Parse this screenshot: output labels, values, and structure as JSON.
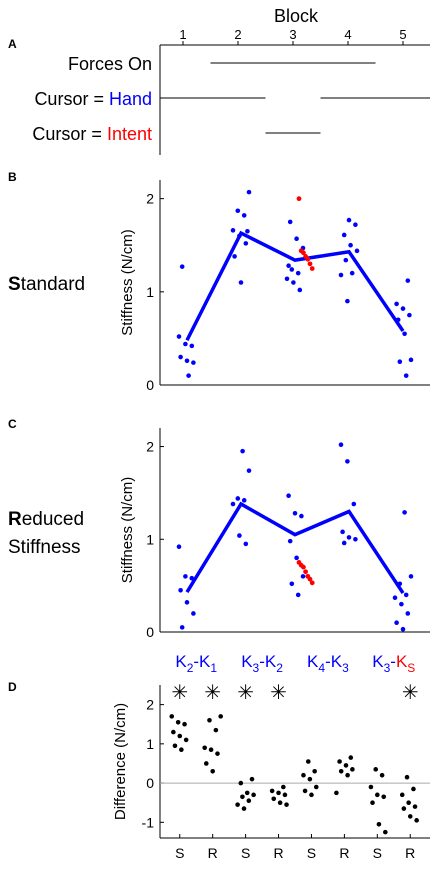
{
  "colors": {
    "blue": "#0000ff",
    "red": "#ff0000",
    "black": "#000000",
    "gray": "#aaaaaa"
  },
  "panel_a": {
    "letter": "A",
    "axis_title": "Block",
    "blocks": [
      "1",
      "2",
      "3",
      "4",
      "5"
    ],
    "rows": [
      {
        "prefix": "Forces On",
        "suffix": "",
        "suffix_color": "black",
        "segments": [
          [
            1.5,
            4.5
          ]
        ]
      },
      {
        "prefix": "Cursor = ",
        "suffix": "Hand",
        "suffix_color": "blue",
        "segments": [
          [
            0.5,
            2.5
          ],
          [
            3.5,
            5.5
          ]
        ]
      },
      {
        "prefix": "Cursor = ",
        "suffix": "Intent",
        "suffix_color": "red",
        "segments": [
          [
            2.5,
            3.5
          ]
        ]
      }
    ]
  },
  "chart_data": [
    {
      "type": "scatter",
      "panel": "B",
      "row_label_bold": "S",
      "row_label_rest": [
        "tandard"
      ],
      "ylabel": "Stiffness (N/cm)",
      "ylim": [
        0,
        2.2
      ],
      "yticks": [
        "0",
        "1",
        "2"
      ],
      "xlim": [
        0.5,
        5.5
      ],
      "mean_line": {
        "x": [
          1,
          2,
          3,
          4,
          5
        ],
        "y": [
          0.48,
          1.63,
          1.34,
          1.43,
          0.58
        ]
      },
      "points": [
        [
          1,
          0.52
        ],
        [
          1,
          0.44
        ],
        [
          1,
          0.42
        ],
        [
          1,
          0.3
        ],
        [
          1,
          0.26
        ],
        [
          1,
          0.24
        ],
        [
          1,
          1.27
        ],
        [
          1,
          0.1
        ],
        [
          2,
          2.07
        ],
        [
          2,
          1.87
        ],
        [
          2,
          1.82
        ],
        [
          2,
          1.66
        ],
        [
          2,
          1.6
        ],
        [
          2,
          1.52
        ],
        [
          2,
          1.38
        ],
        [
          2,
          1.1
        ],
        [
          2,
          1.65
        ],
        [
          3,
          1.75
        ],
        [
          3,
          1.57
        ],
        [
          3,
          1.47
        ],
        [
          3,
          1.24
        ],
        [
          3,
          1.2
        ],
        [
          3,
          1.14
        ],
        [
          3,
          1.1
        ],
        [
          3,
          1.02
        ],
        [
          3,
          1.28
        ],
        [
          4,
          1.77
        ],
        [
          4,
          1.72
        ],
        [
          4,
          1.61
        ],
        [
          4,
          1.5
        ],
        [
          4,
          1.44
        ],
        [
          4,
          1.34
        ],
        [
          4,
          1.2
        ],
        [
          4,
          1.18
        ],
        [
          4,
          0.9
        ],
        [
          5,
          1.12
        ],
        [
          5,
          0.87
        ],
        [
          5,
          0.82
        ],
        [
          5,
          0.75
        ],
        [
          5,
          0.7
        ],
        [
          5,
          0.55
        ],
        [
          5,
          0.27
        ],
        [
          5,
          0.25
        ],
        [
          5,
          0.1
        ]
      ],
      "intent_points": [
        [
          3,
          2.0
        ],
        [
          3,
          1.44
        ],
        [
          3,
          1.42
        ],
        [
          3,
          1.38
        ],
        [
          3,
          1.35
        ],
        [
          3,
          1.3
        ],
        [
          3,
          1.25
        ]
      ]
    },
    {
      "type": "scatter",
      "panel": "C",
      "row_label_bold": "R",
      "row_label_rest": [
        "educed",
        "Stiffness"
      ],
      "ylabel": "Stiffness (N/cm)",
      "ylim": [
        0,
        2.2
      ],
      "yticks": [
        "0",
        "1",
        "2"
      ],
      "xlim": [
        0.5,
        5.5
      ],
      "mean_line": {
        "x": [
          1,
          2,
          3,
          4,
          5
        ],
        "y": [
          0.43,
          1.38,
          1.05,
          1.3,
          0.42
        ]
      },
      "points": [
        [
          1,
          0.92
        ],
        [
          1,
          0.6
        ],
        [
          1,
          0.58
        ],
        [
          1,
          0.45
        ],
        [
          1,
          0.32
        ],
        [
          1,
          0.2
        ],
        [
          1,
          0.05
        ],
        [
          2,
          1.95
        ],
        [
          2,
          1.74
        ],
        [
          2,
          1.44
        ],
        [
          2,
          1.42
        ],
        [
          2,
          1.38
        ],
        [
          2,
          1.04
        ],
        [
          2,
          0.95
        ],
        [
          3,
          1.47
        ],
        [
          3,
          1.28
        ],
        [
          3,
          1.25
        ],
        [
          3,
          0.98
        ],
        [
          3,
          0.8
        ],
        [
          3,
          0.6
        ],
        [
          3,
          0.52
        ],
        [
          3,
          0.4
        ],
        [
          4,
          2.02
        ],
        [
          4,
          1.84
        ],
        [
          4,
          1.38
        ],
        [
          4,
          1.08
        ],
        [
          4,
          1.02
        ],
        [
          4,
          1.0
        ],
        [
          4,
          0.96
        ],
        [
          5,
          1.29
        ],
        [
          5,
          0.6
        ],
        [
          5,
          0.52
        ],
        [
          5,
          0.4
        ],
        [
          5,
          0.37
        ],
        [
          5,
          0.3
        ],
        [
          5,
          0.2
        ],
        [
          5,
          0.1
        ],
        [
          5,
          0.03
        ]
      ],
      "intent_points": [
        [
          3,
          0.75
        ],
        [
          3,
          0.72
        ],
        [
          3,
          0.7
        ],
        [
          3,
          0.65
        ],
        [
          3,
          0.6
        ],
        [
          3,
          0.57
        ],
        [
          3,
          0.53
        ]
      ]
    },
    {
      "type": "scatter",
      "panel": "D",
      "ylabel": "Difference (N/cm)",
      "ylim": [
        -1.4,
        2.5
      ],
      "yticks": [
        "-1",
        "0",
        "1",
        "2"
      ],
      "xlim": [
        0.4,
        8.6
      ],
      "x_labels": [
        {
          "x": 1,
          "label": "S"
        },
        {
          "x": 2,
          "label": "R"
        },
        {
          "x": 3,
          "label": "S"
        },
        {
          "x": 4,
          "label": "R"
        },
        {
          "x": 5,
          "label": "S"
        },
        {
          "x": 6,
          "label": "R"
        },
        {
          "x": 7,
          "label": "S"
        },
        {
          "x": 8,
          "label": "R"
        }
      ],
      "group_titles": [
        {
          "x": 1.5,
          "a": "K",
          "a_sub": "2",
          "b": "K",
          "b_sub": "1",
          "b_color": "blue"
        },
        {
          "x": 3.5,
          "a": "K",
          "a_sub": "3",
          "b": "K",
          "b_sub": "2",
          "b_color": "blue"
        },
        {
          "x": 5.5,
          "a": "K",
          "a_sub": "4",
          "b": "K",
          "b_sub": "3",
          "b_color": "blue"
        },
        {
          "x": 7.5,
          "a": "K",
          "a_sub": "3",
          "b": "K",
          "b_sub": "S",
          "b_color": "red"
        }
      ],
      "significance": [
        1,
        2,
        3,
        4,
        8
      ],
      "significance_mark": "✳",
      "zero_line": true,
      "points": [
        [
          1,
          1.7
        ],
        [
          1,
          1.55
        ],
        [
          1,
          1.5
        ],
        [
          1,
          1.3
        ],
        [
          1,
          1.2
        ],
        [
          1,
          1.1
        ],
        [
          1,
          0.95
        ],
        [
          1,
          0.85
        ],
        [
          2,
          1.7
        ],
        [
          2,
          1.6
        ],
        [
          2,
          1.35
        ],
        [
          2,
          0.9
        ],
        [
          2,
          0.85
        ],
        [
          2,
          0.75
        ],
        [
          2,
          0.5
        ],
        [
          2,
          0.3
        ],
        [
          3,
          0.1
        ],
        [
          3,
          0.0
        ],
        [
          3,
          -0.25
        ],
        [
          3,
          -0.3
        ],
        [
          3,
          -0.35
        ],
        [
          3,
          -0.45
        ],
        [
          3,
          -0.55
        ],
        [
          3,
          -0.65
        ],
        [
          4,
          -0.1
        ],
        [
          4,
          -0.2
        ],
        [
          4,
          -0.25
        ],
        [
          4,
          -0.3
        ],
        [
          4,
          -0.4
        ],
        [
          4,
          -0.5
        ],
        [
          4,
          -0.55
        ],
        [
          5,
          0.55
        ],
        [
          5,
          0.3
        ],
        [
          5,
          0.2
        ],
        [
          5,
          0.1
        ],
        [
          5,
          -0.1
        ],
        [
          5,
          -0.2
        ],
        [
          5,
          -0.3
        ],
        [
          6,
          0.65
        ],
        [
          6,
          0.55
        ],
        [
          6,
          0.45
        ],
        [
          6,
          0.35
        ],
        [
          6,
          0.3
        ],
        [
          6,
          0.2
        ],
        [
          6,
          -0.25
        ],
        [
          7,
          0.35
        ],
        [
          7,
          0.2
        ],
        [
          7,
          -0.1
        ],
        [
          7,
          -0.3
        ],
        [
          7,
          -0.35
        ],
        [
          7,
          -0.5
        ],
        [
          7,
          -1.05
        ],
        [
          7,
          -1.25
        ],
        [
          8,
          0.15
        ],
        [
          8,
          -0.15
        ],
        [
          8,
          -0.3
        ],
        [
          8,
          -0.5
        ],
        [
          8,
          -0.6
        ],
        [
          8,
          -0.65
        ],
        [
          8,
          -0.85
        ],
        [
          8,
          -0.95
        ]
      ]
    }
  ]
}
